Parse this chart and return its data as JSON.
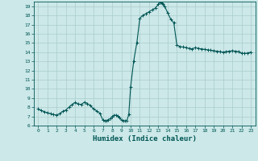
{
  "xlabel": "Humidex (Indice chaleur)",
  "bg_color": "#cce8e8",
  "grid_color": "#aacccc",
  "line_color": "#005555",
  "xlim": [
    -0.5,
    23.5
  ],
  "ylim": [
    6,
    19.5
  ],
  "yticks": [
    6,
    7,
    8,
    9,
    10,
    11,
    12,
    13,
    14,
    15,
    16,
    17,
    18,
    19
  ],
  "xticks": [
    0,
    1,
    2,
    3,
    4,
    5,
    6,
    7,
    8,
    9,
    10,
    11,
    12,
    13,
    14,
    15,
    16,
    17,
    18,
    19,
    20,
    21,
    22,
    23
  ],
  "x": [
    0,
    0.33,
    0.67,
    1,
    1.33,
    1.67,
    2,
    2.33,
    2.67,
    3,
    3.33,
    3.67,
    4,
    4.33,
    4.67,
    5,
    5.33,
    5.67,
    6,
    6.33,
    6.67,
    7,
    7.2,
    7.4,
    7.6,
    7.8,
    8,
    8.2,
    8.4,
    8.6,
    8.8,
    9,
    9.2,
    9.4,
    9.6,
    9.8,
    10,
    10.33,
    10.67,
    11,
    11.33,
    11.67,
    12,
    12.33,
    12.67,
    13,
    13.2,
    13.4,
    13.5,
    13.67,
    14,
    14.33,
    14.67,
    15,
    15.33,
    15.67,
    16,
    16.33,
    16.67,
    17,
    17.33,
    17.67,
    18,
    18.33,
    18.67,
    19,
    19.33,
    19.67,
    20,
    20.33,
    20.67,
    21,
    21.33,
    21.67,
    22,
    22.33,
    22.67,
    23
  ],
  "y": [
    7.8,
    7.65,
    7.5,
    7.4,
    7.3,
    7.2,
    7.15,
    7.3,
    7.55,
    7.7,
    8.0,
    8.3,
    8.5,
    8.35,
    8.3,
    8.55,
    8.4,
    8.15,
    7.8,
    7.6,
    7.35,
    6.6,
    6.5,
    6.55,
    6.65,
    6.75,
    7.0,
    7.1,
    7.15,
    7.05,
    6.9,
    6.6,
    6.55,
    6.5,
    6.55,
    7.2,
    10.2,
    13.0,
    15.0,
    17.7,
    18.0,
    18.2,
    18.4,
    18.6,
    18.8,
    19.2,
    19.4,
    19.35,
    19.25,
    19.0,
    18.3,
    17.6,
    17.2,
    14.8,
    14.6,
    14.55,
    14.5,
    14.4,
    14.35,
    14.5,
    14.4,
    14.35,
    14.3,
    14.25,
    14.2,
    14.15,
    14.1,
    14.05,
    14.0,
    14.05,
    14.1,
    14.15,
    14.1,
    14.05,
    13.9,
    13.85,
    13.9,
    14.0
  ]
}
